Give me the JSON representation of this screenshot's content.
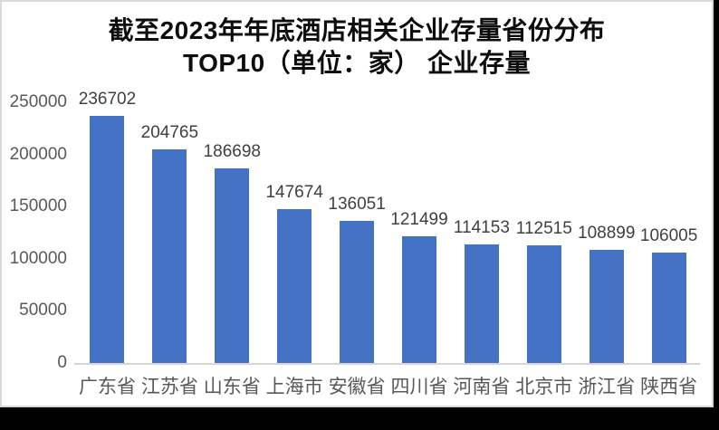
{
  "window": {
    "background_color": "#000000",
    "panel_background": "#ffffff",
    "panel_border_color": "#d9d9d9"
  },
  "chart_data": {
    "type": "bar",
    "title": "截至2023年年底酒店相关企业存量省份分布 TOP10（单位：家） 企业存量",
    "title_line1": "截至2023年年底酒店相关企业存量省份分布",
    "title_line2": "TOP10（单位：家） 企业存量",
    "categories": [
      "广东省",
      "江苏省",
      "山东省",
      "上海市",
      "安徽省",
      "四川省",
      "河南省",
      "北京市",
      "浙江省",
      "陕西省"
    ],
    "values": [
      236702,
      204765,
      186698,
      147674,
      136051,
      121499,
      114153,
      112515,
      108899,
      106005
    ],
    "xlabel": "",
    "ylabel": "",
    "ylim": [
      0,
      250000
    ],
    "yticks": [
      0,
      50000,
      100000,
      150000,
      200000,
      250000
    ],
    "grid": false,
    "legend_position": "none",
    "data_labels_shown": true,
    "bar_color": "#4472C4",
    "value_label_color": "#404040",
    "axis_tick_color": "#595959",
    "axis_line_color": "#d6d6d6",
    "title_color": "#0d0d0d"
  }
}
